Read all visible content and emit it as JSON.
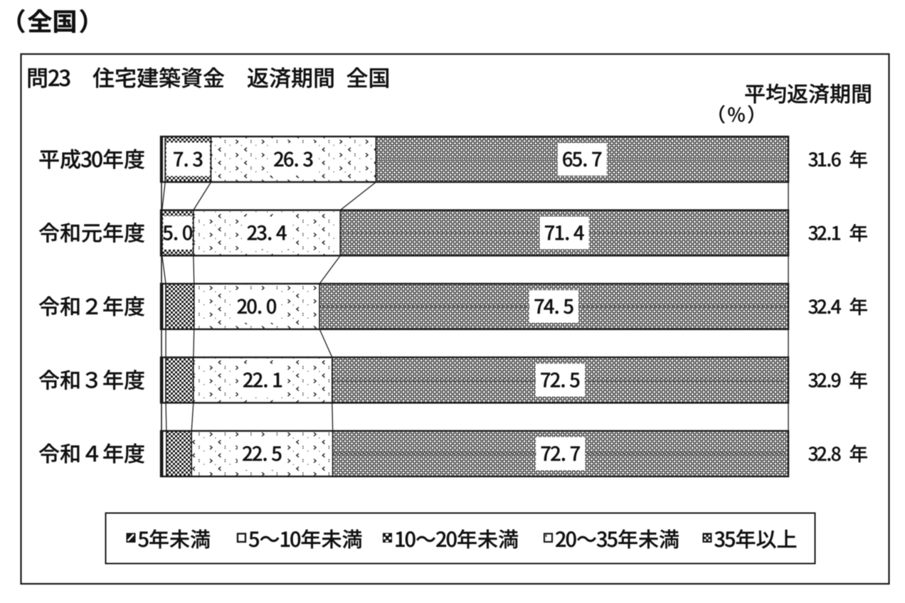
{
  "page": {
    "heading": "（全国）"
  },
  "figure": {
    "title": "問23　住宅建築資金　返済期間 全国",
    "right_column_title": "平均返済期間",
    "unit_label": "（%）"
  },
  "chart_data": {
    "type": "bar",
    "subtype": "horizontal-stacked",
    "unit": "%",
    "xlim": [
      0,
      100
    ],
    "grid": false,
    "legend_position": "bottom",
    "title": "問23　住宅建築資金　返済期間 全国",
    "categories": [
      "平成30年度",
      "令和元年度",
      "令和２年度",
      "令和３年度",
      "令和４年度"
    ],
    "series": [
      {
        "name": "5年未満",
        "swatch": "dark-diagonal",
        "values": [
          0.25,
          0.1,
          0.3,
          0.3,
          0.3
        ],
        "value_labels": [
          null,
          null,
          null,
          null,
          null
        ],
        "estimated": true
      },
      {
        "name": "5～10年未満",
        "swatch": "white",
        "values": [
          0.45,
          0.1,
          0.5,
          0.5,
          0.6
        ],
        "value_labels": [
          null,
          null,
          null,
          null,
          null
        ],
        "estimated": true
      },
      {
        "name": "10～20年未満",
        "swatch": "checkerboard",
        "values": [
          7.3,
          5.0,
          4.5,
          4.4,
          4.0
        ],
        "value_labels": [
          "7.3",
          "5.0",
          null,
          null,
          null
        ]
      },
      {
        "name": "20～35年未満",
        "swatch": "speckle",
        "values": [
          26.3,
          23.4,
          20.0,
          22.1,
          22.5
        ],
        "value_labels": [
          "26.3",
          "23.4",
          "20.0",
          "22.1",
          "22.5"
        ]
      },
      {
        "name": "35年以上",
        "swatch": "cross-lattice",
        "values": [
          65.7,
          71.4,
          74.5,
          72.5,
          72.7
        ],
        "value_labels": [
          "65.7",
          "71.4",
          "74.5",
          "72.5",
          "72.7"
        ]
      }
    ],
    "right_column": {
      "title": "平均返済期間",
      "unit_label": "（%）",
      "values": [
        "31.6 年",
        "32.1 年",
        "32.4 年",
        "32.9 年",
        "32.8 年"
      ]
    }
  },
  "legend": {
    "items": [
      {
        "label": "5年未満",
        "swatch": "dark-diagonal"
      },
      {
        "label": "5～10年未満",
        "swatch": "white"
      },
      {
        "label": "10～20年未満",
        "swatch": "checkerboard"
      },
      {
        "label": "20～35年未満",
        "swatch": "speckle"
      },
      {
        "label": "35年以上",
        "swatch": "cross-lattice"
      }
    ]
  },
  "colors": {
    "ink": "#1a1a1a",
    "text": "#111111",
    "background": "#ffffff"
  }
}
